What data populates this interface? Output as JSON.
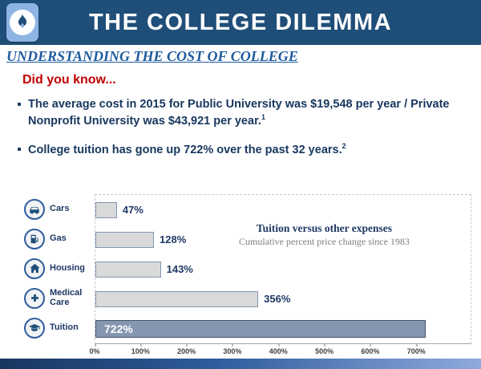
{
  "header": {
    "title": "THE COLLEGE DILEMMA",
    "logo": "flame-logo"
  },
  "subtitle": "UNDERSTANDING THE COST OF COLLEGE",
  "intro": {
    "heading": "Did you know...",
    "bullets": [
      {
        "text": "The average cost in 2015 for Public University was $19,548 per year / Private Nonprofit University was $43,921 per year.",
        "footnote": "1"
      },
      {
        "text": "College tuition has gone up 722% over the past 32 years.",
        "footnote": "2"
      }
    ]
  },
  "chart_data": {
    "type": "bar",
    "orientation": "horizontal",
    "title": "Tuition versus other expenses",
    "subtitle": "Cumulative percent price change since 1983",
    "categories": [
      "Cars",
      "Gas",
      "Housing",
      "Medical Care",
      "Tuition"
    ],
    "values": [
      47,
      128,
      143,
      356,
      722
    ],
    "value_labels": [
      "47%",
      "128%",
      "143%",
      "356%",
      "722%"
    ],
    "icons": [
      "car-icon",
      "gas-pump-icon",
      "house-icon",
      "medical-icon",
      "graduation-cap-icon"
    ],
    "x_ticks": [
      "0%",
      "100%",
      "200%",
      "300%",
      "400%",
      "500%",
      "600%",
      "700%"
    ],
    "xlim": [
      0,
      820
    ],
    "highlight_category": "Tuition",
    "grid": false,
    "legend": false
  },
  "colors": {
    "header_bg": "#1F4E79",
    "subtitle_blue": "#1F5B9E",
    "accent_red": "#C00000",
    "text_navy": "#1F3864",
    "bar_fill": "#D9D9D9",
    "bar_border": "#8496B0",
    "highlight_fill": "#8496B0",
    "annotation_gray": "#7F7F7F"
  }
}
